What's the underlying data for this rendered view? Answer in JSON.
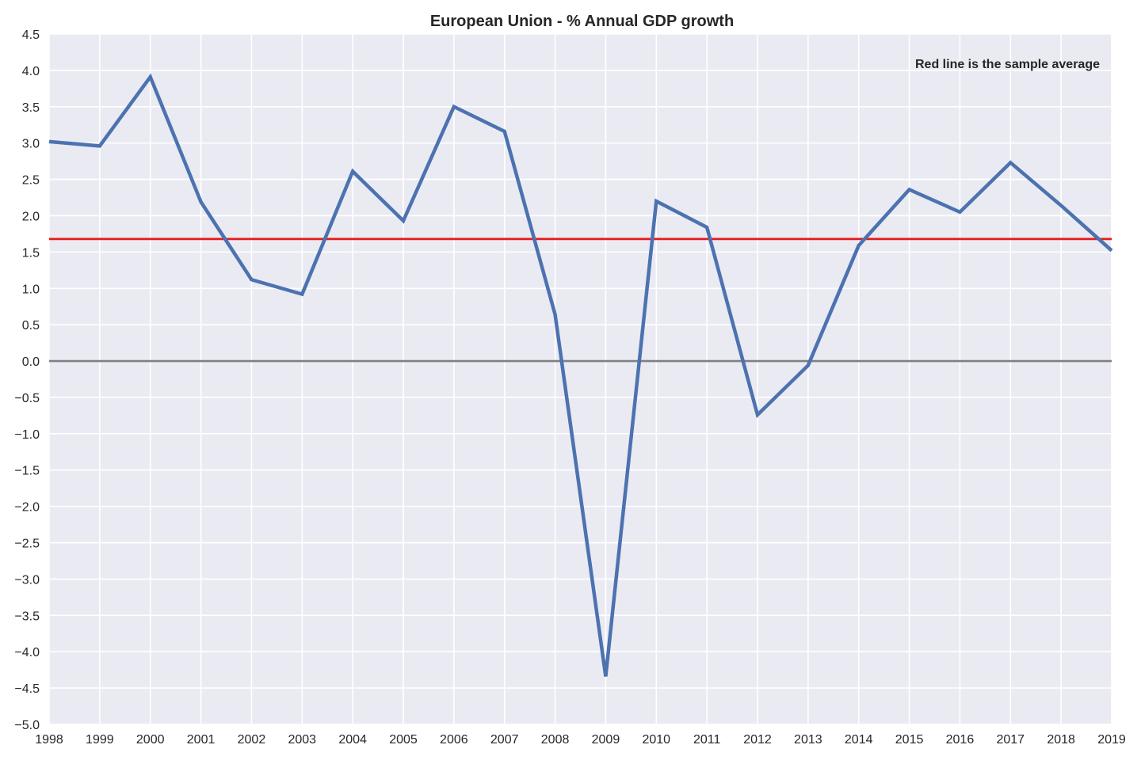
{
  "chart_data": {
    "type": "line",
    "title": "European Union - % Annual GDP growth",
    "xlabel": "",
    "ylabel": "",
    "x": [
      1998,
      1999,
      2000,
      2001,
      2002,
      2003,
      2004,
      2005,
      2006,
      2007,
      2008,
      2009,
      2010,
      2011,
      2012,
      2013,
      2014,
      2015,
      2016,
      2017,
      2018,
      2019
    ],
    "series": [
      {
        "values": [
          3.02,
          2.96,
          3.91,
          2.19,
          1.12,
          0.92,
          2.61,
          1.93,
          3.5,
          3.16,
          0.64,
          -4.34,
          2.2,
          1.84,
          -0.74,
          -0.06,
          1.59,
          2.36,
          2.05,
          2.73,
          2.14,
          1.52
        ],
        "color": "#4c72b0"
      }
    ],
    "reference_lines": [
      {
        "value": 1.68,
        "color": "#e41a1c"
      },
      {
        "value": 0.0,
        "color": "#808080"
      }
    ],
    "annotation": "Red line is the sample average",
    "xlim": [
      1998,
      2019
    ],
    "ylim": [
      -5.0,
      4.5
    ],
    "xticks": [
      "1998",
      "1999",
      "2000",
      "2001",
      "2002",
      "2003",
      "2004",
      "2005",
      "2006",
      "2007",
      "2008",
      "2009",
      "2010",
      "2011",
      "2012",
      "2013",
      "2014",
      "2015",
      "2016",
      "2017",
      "2018",
      "2019"
    ],
    "yticks": [
      "4.5",
      "4.0",
      "3.5",
      "3.0",
      "2.5",
      "2.0",
      "1.5",
      "1.0",
      "0.5",
      "0.0",
      "−0.5",
      "−1.0",
      "−1.5",
      "−2.0",
      "−2.5",
      "−3.0",
      "−3.5",
      "−4.0",
      "−4.5",
      "−5.0"
    ],
    "grid": true,
    "background": "#eaeaf2",
    "grid_color": "#ffffff"
  }
}
